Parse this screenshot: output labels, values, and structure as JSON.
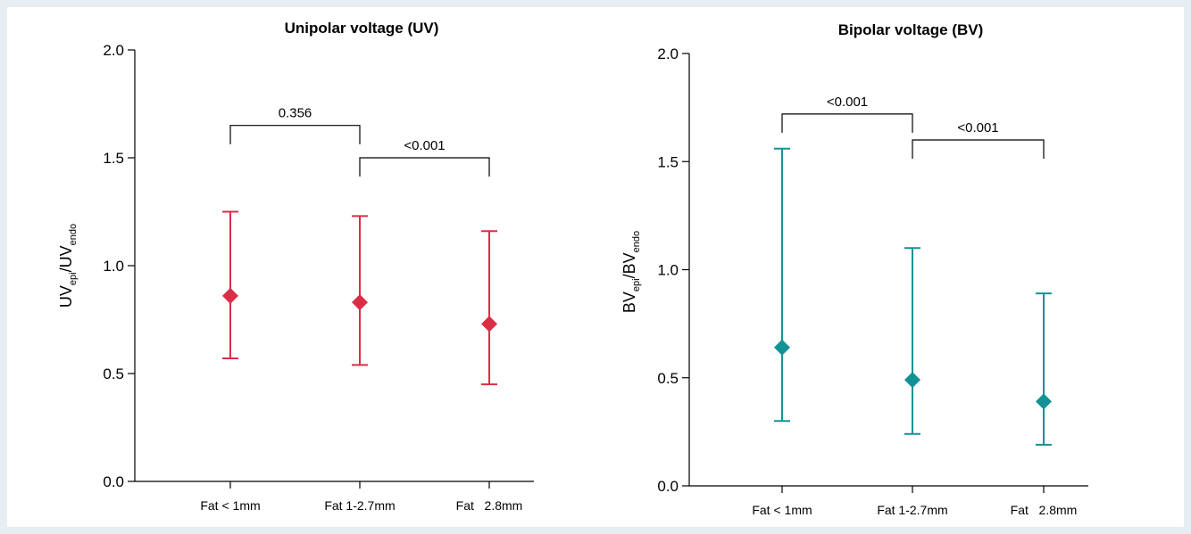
{
  "chart_data": [
    {
      "type": "scatter",
      "title": "Unipolar voltage (UV)",
      "ylabel": {
        "base1": "UV",
        "sub1": "epi",
        "mid": "/UV",
        "sub2": "endo"
      },
      "ylim": [
        0,
        2.0
      ],
      "yticks": [
        "0.0",
        "0.5",
        "1.0",
        "1.5",
        "2.0"
      ],
      "categories": [
        "Fat < 1mm",
        "Fat 1-2.7mm",
        "Fat   2.8mm"
      ],
      "values": [
        0.86,
        0.83,
        0.73
      ],
      "lower": [
        0.57,
        0.54,
        0.45
      ],
      "upper": [
        1.25,
        1.23,
        1.16
      ],
      "color": "#dc2d46",
      "comparisons": [
        {
          "from": 0,
          "to": 1,
          "label": "0.356",
          "level": 1.65
        },
        {
          "from": 1,
          "to": 2,
          "label": "<0.001",
          "level": 1.5
        }
      ]
    },
    {
      "type": "scatter",
      "title": "Bipolar voltage (BV)",
      "ylabel": {
        "base1": "BV",
        "sub1": "epi",
        "mid": "/BV",
        "sub2": "endo"
      },
      "ylim": [
        0,
        2.0
      ],
      "yticks": [
        "0.0",
        "0.5",
        "1.0",
        "1.5",
        "2.0"
      ],
      "categories": [
        "Fat < 1mm",
        "Fat 1-2.7mm",
        "Fat   2.8mm"
      ],
      "values": [
        0.64,
        0.49,
        0.39
      ],
      "lower": [
        0.3,
        0.24,
        0.19
      ],
      "upper": [
        1.56,
        1.1,
        0.89
      ],
      "color": "#139296",
      "comparisons": [
        {
          "from": 0,
          "to": 1,
          "label": "<0.001",
          "level": 1.72
        },
        {
          "from": 1,
          "to": 2,
          "label": "<0.001",
          "level": 1.6
        }
      ]
    }
  ]
}
